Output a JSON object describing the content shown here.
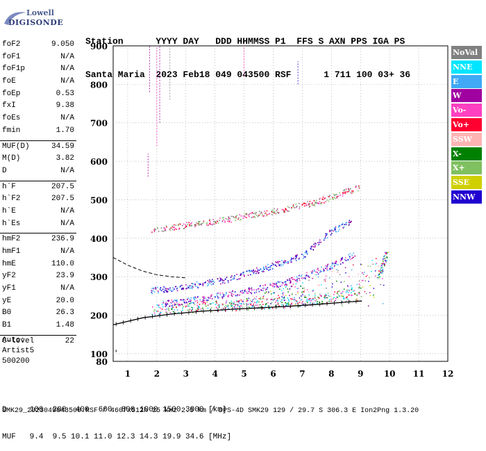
{
  "logo": {
    "top_text": "Lowell",
    "brand": "DIGISONDE"
  },
  "header": {
    "line1": "Station      YYYY DAY   DDD HHMMSS P1  FFS S AXN PPS IGA PS",
    "line2": "Santa Maria  2023 Feb18 049 043500 RSF      1 711 100 03+ 36"
  },
  "params": [
    {
      "label": "foF2",
      "value": "9.050"
    },
    {
      "label": "foF1",
      "value": "N/A"
    },
    {
      "label": "foF1p",
      "value": "N/A"
    },
    {
      "label": "foE",
      "value": "N/A"
    },
    {
      "label": "foEp",
      "value": "0.53"
    },
    {
      "label": "fxI",
      "value": "9.38"
    },
    {
      "label": "foEs",
      "value": "N/A"
    },
    {
      "label": "fmin",
      "value": "1.70"
    },
    {
      "label": "MUF(D)",
      "value": "34.59"
    },
    {
      "label": "M(D)",
      "value": "3.82"
    },
    {
      "label": "D",
      "value": "N/A"
    },
    {
      "label": "h`F",
      "value": "207.5"
    },
    {
      "label": "h`F2",
      "value": "207.5"
    },
    {
      "label": "h`E",
      "value": "N/A"
    },
    {
      "label": "h`Es",
      "value": "N/A"
    },
    {
      "label": "hmF2",
      "value": "236.9"
    },
    {
      "label": "hmF1",
      "value": "N/A"
    },
    {
      "label": "hmE",
      "value": "110.0"
    },
    {
      "label": "yF2",
      "value": "23.9"
    },
    {
      "label": "yF1",
      "value": "N/A"
    },
    {
      "label": "yE",
      "value": "20.0"
    },
    {
      "label": "B0",
      "value": "26.3"
    },
    {
      "label": "B1",
      "value": "1.48"
    },
    {
      "label": "C-level",
      "value": "22"
    }
  ],
  "auto": {
    "line1": "Auto:",
    "line2": "Artist5",
    "line3": "500200"
  },
  "legend": [
    {
      "label": "NoVal",
      "color": "#808080"
    },
    {
      "label": "NNE",
      "color": "#00e5ff"
    },
    {
      "label": "E",
      "color": "#3fa9f5"
    },
    {
      "label": "W",
      "color": "#a000a0"
    },
    {
      "label": "Vo-",
      "color": "#ff40c0"
    },
    {
      "label": "Vo+",
      "color": "#ff0030"
    },
    {
      "label": "SSW",
      "color": "#ffb4b4"
    },
    {
      "label": "X-",
      "color": "#008000"
    },
    {
      "label": "X+",
      "color": "#80c060"
    },
    {
      "label": "SSE",
      "color": "#d0d000"
    },
    {
      "label": "NNW",
      "color": "#2000d0"
    }
  ],
  "footer": {
    "line1": "D     100  200  400  600  800 1000 1500 3000 [km]",
    "line2": "MUF   9.4  9.5 10.1 11.0 12.3 14.3 19.9 34.6 [MHz]",
    "line3": "SMK29_2023049043500.RSF / 460fx512h 25 kHz 2.5 km / DPS-4D SMK29 129 / 29.7 S 306.3 E Ion2Png 1.3.20"
  },
  "chart_data": {
    "type": "scatter",
    "xlim": [
      0.5,
      12
    ],
    "ylim": [
      80,
      900
    ],
    "x_ticks": [
      1,
      2,
      3,
      4,
      5,
      6,
      7,
      8,
      9,
      10,
      11,
      12
    ],
    "y_ticks": [
      100,
      200,
      300,
      400,
      500,
      600,
      700,
      800,
      900
    ],
    "grid": true,
    "traces": [
      {
        "name": "F2 O-trace",
        "points": [
          [
            1.8,
            215
          ],
          [
            2.5,
            218
          ],
          [
            3.5,
            222
          ],
          [
            4.5,
            226
          ],
          [
            5.5,
            230
          ],
          [
            6.5,
            235
          ],
          [
            7.5,
            242
          ],
          [
            8.5,
            255
          ],
          [
            9.0,
            270
          ]
        ]
      },
      {
        "name": "F2 X-trace",
        "points": [
          [
            2.2,
            230
          ],
          [
            3.0,
            238
          ],
          [
            4.0,
            250
          ],
          [
            5.0,
            262
          ],
          [
            6.0,
            278
          ],
          [
            7.0,
            300
          ],
          [
            8.0,
            330
          ],
          [
            8.8,
            360
          ]
        ]
      },
      {
        "name": "2F trace",
        "points": [
          [
            1.8,
            420
          ],
          [
            3.0,
            435
          ],
          [
            4.5,
            450
          ],
          [
            6.0,
            470
          ],
          [
            7.5,
            495
          ],
          [
            9.0,
            535
          ]
        ]
      },
      {
        "name": "upper trace",
        "points": [
          [
            1.8,
            265
          ],
          [
            3.0,
            275
          ],
          [
            4.5,
            295
          ],
          [
            6.0,
            330
          ],
          [
            7.0,
            355
          ],
          [
            8.0,
            420
          ],
          [
            8.7,
            445
          ]
        ]
      }
    ],
    "profile_curve": [
      [
        0.5,
        175
      ],
      [
        1.5,
        193
      ],
      [
        2.5,
        203
      ],
      [
        3.5,
        210
      ],
      [
        4.5,
        215
      ],
      [
        5.5,
        219
      ],
      [
        6.5,
        223
      ],
      [
        7.5,
        228
      ],
      [
        8.5,
        234
      ],
      [
        9.05,
        237
      ]
    ],
    "dashed_curve": [
      [
        0.5,
        350
      ],
      [
        1.0,
        330
      ],
      [
        1.5,
        315
      ],
      [
        2.0,
        305
      ],
      [
        2.5,
        300
      ],
      [
        3.0,
        297
      ]
    ]
  }
}
